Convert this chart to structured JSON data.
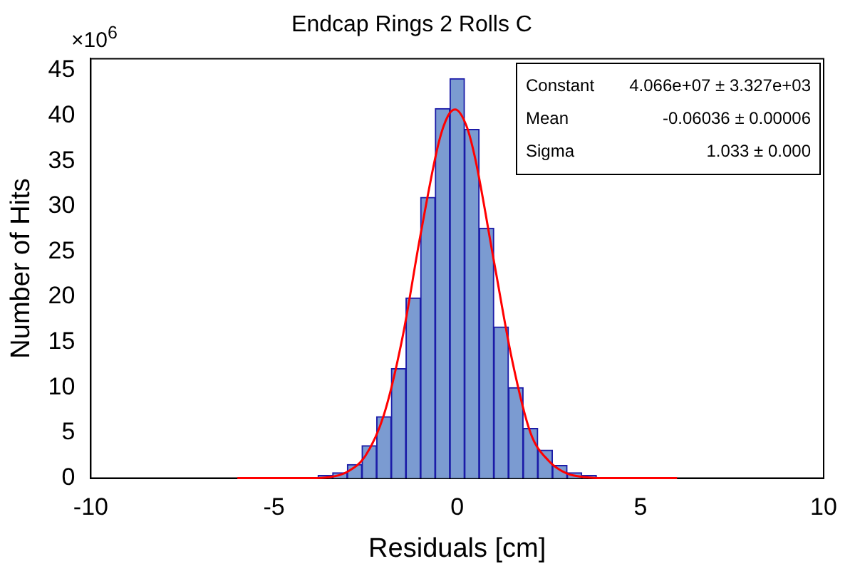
{
  "chart_data": {
    "type": "histogram",
    "title": "Endcap Rings 2 Rolls C",
    "xlabel": "Residuals [cm]",
    "ylabel": "Number of Hits",
    "bins": [
      -3.8,
      -3.4,
      -3.0,
      -2.6,
      -2.2,
      -1.8,
      -1.4,
      -1.0,
      -0.6,
      -0.2,
      0.2,
      0.6,
      1.0,
      1.4,
      1.8,
      2.2,
      2.6,
      3.0,
      3.4,
      3.8
    ],
    "series": [
      {
        "color": "#7b9bd1",
        "values": [
          0.3,
          0.6,
          1.5,
          3.6,
          6.8,
          12.1,
          19.9,
          31.0,
          40.8,
          44.1,
          38.5,
          27.6,
          16.7,
          10.0,
          5.5,
          3.1,
          1.4,
          0.6,
          0.3
        ]
      },
      {
        "type": "line",
        "color": "#ff0000",
        "x": [
          -6,
          -4,
          -3.5,
          -3,
          -2.5,
          -2,
          -1.5,
          -1,
          -0.5,
          -0.25,
          -0.06,
          0.25,
          0.5,
          1,
          1.5,
          2,
          2.5,
          3,
          3.5,
          4,
          6
        ],
        "values": [
          0,
          0,
          0.1,
          0.7,
          2.5,
          7.0,
          15.4,
          26.9,
          37.1,
          40.0,
          40.7,
          38.9,
          35.1,
          24.0,
          13.0,
          5.0,
          1.9,
          0.5,
          0.1,
          0,
          0
        ]
      }
    ],
    "xlim": [
      -10,
      10
    ],
    "xticks": [
      -10,
      -5,
      0,
      5,
      10
    ],
    "ylim": [
      0,
      46.3
    ],
    "yticks": [
      0,
      5,
      10,
      15,
      20,
      25,
      30,
      35,
      40,
      45
    ],
    "grid": false,
    "legend": false,
    "annotations": [
      "×10$^{6}$",
      "Constant",
      "4.066e+07 ± 3.327e+03",
      "Mean",
      "-0.06036 ± 0.00006",
      "Sigma",
      "1.033 ± 0.000"
    ]
  }
}
